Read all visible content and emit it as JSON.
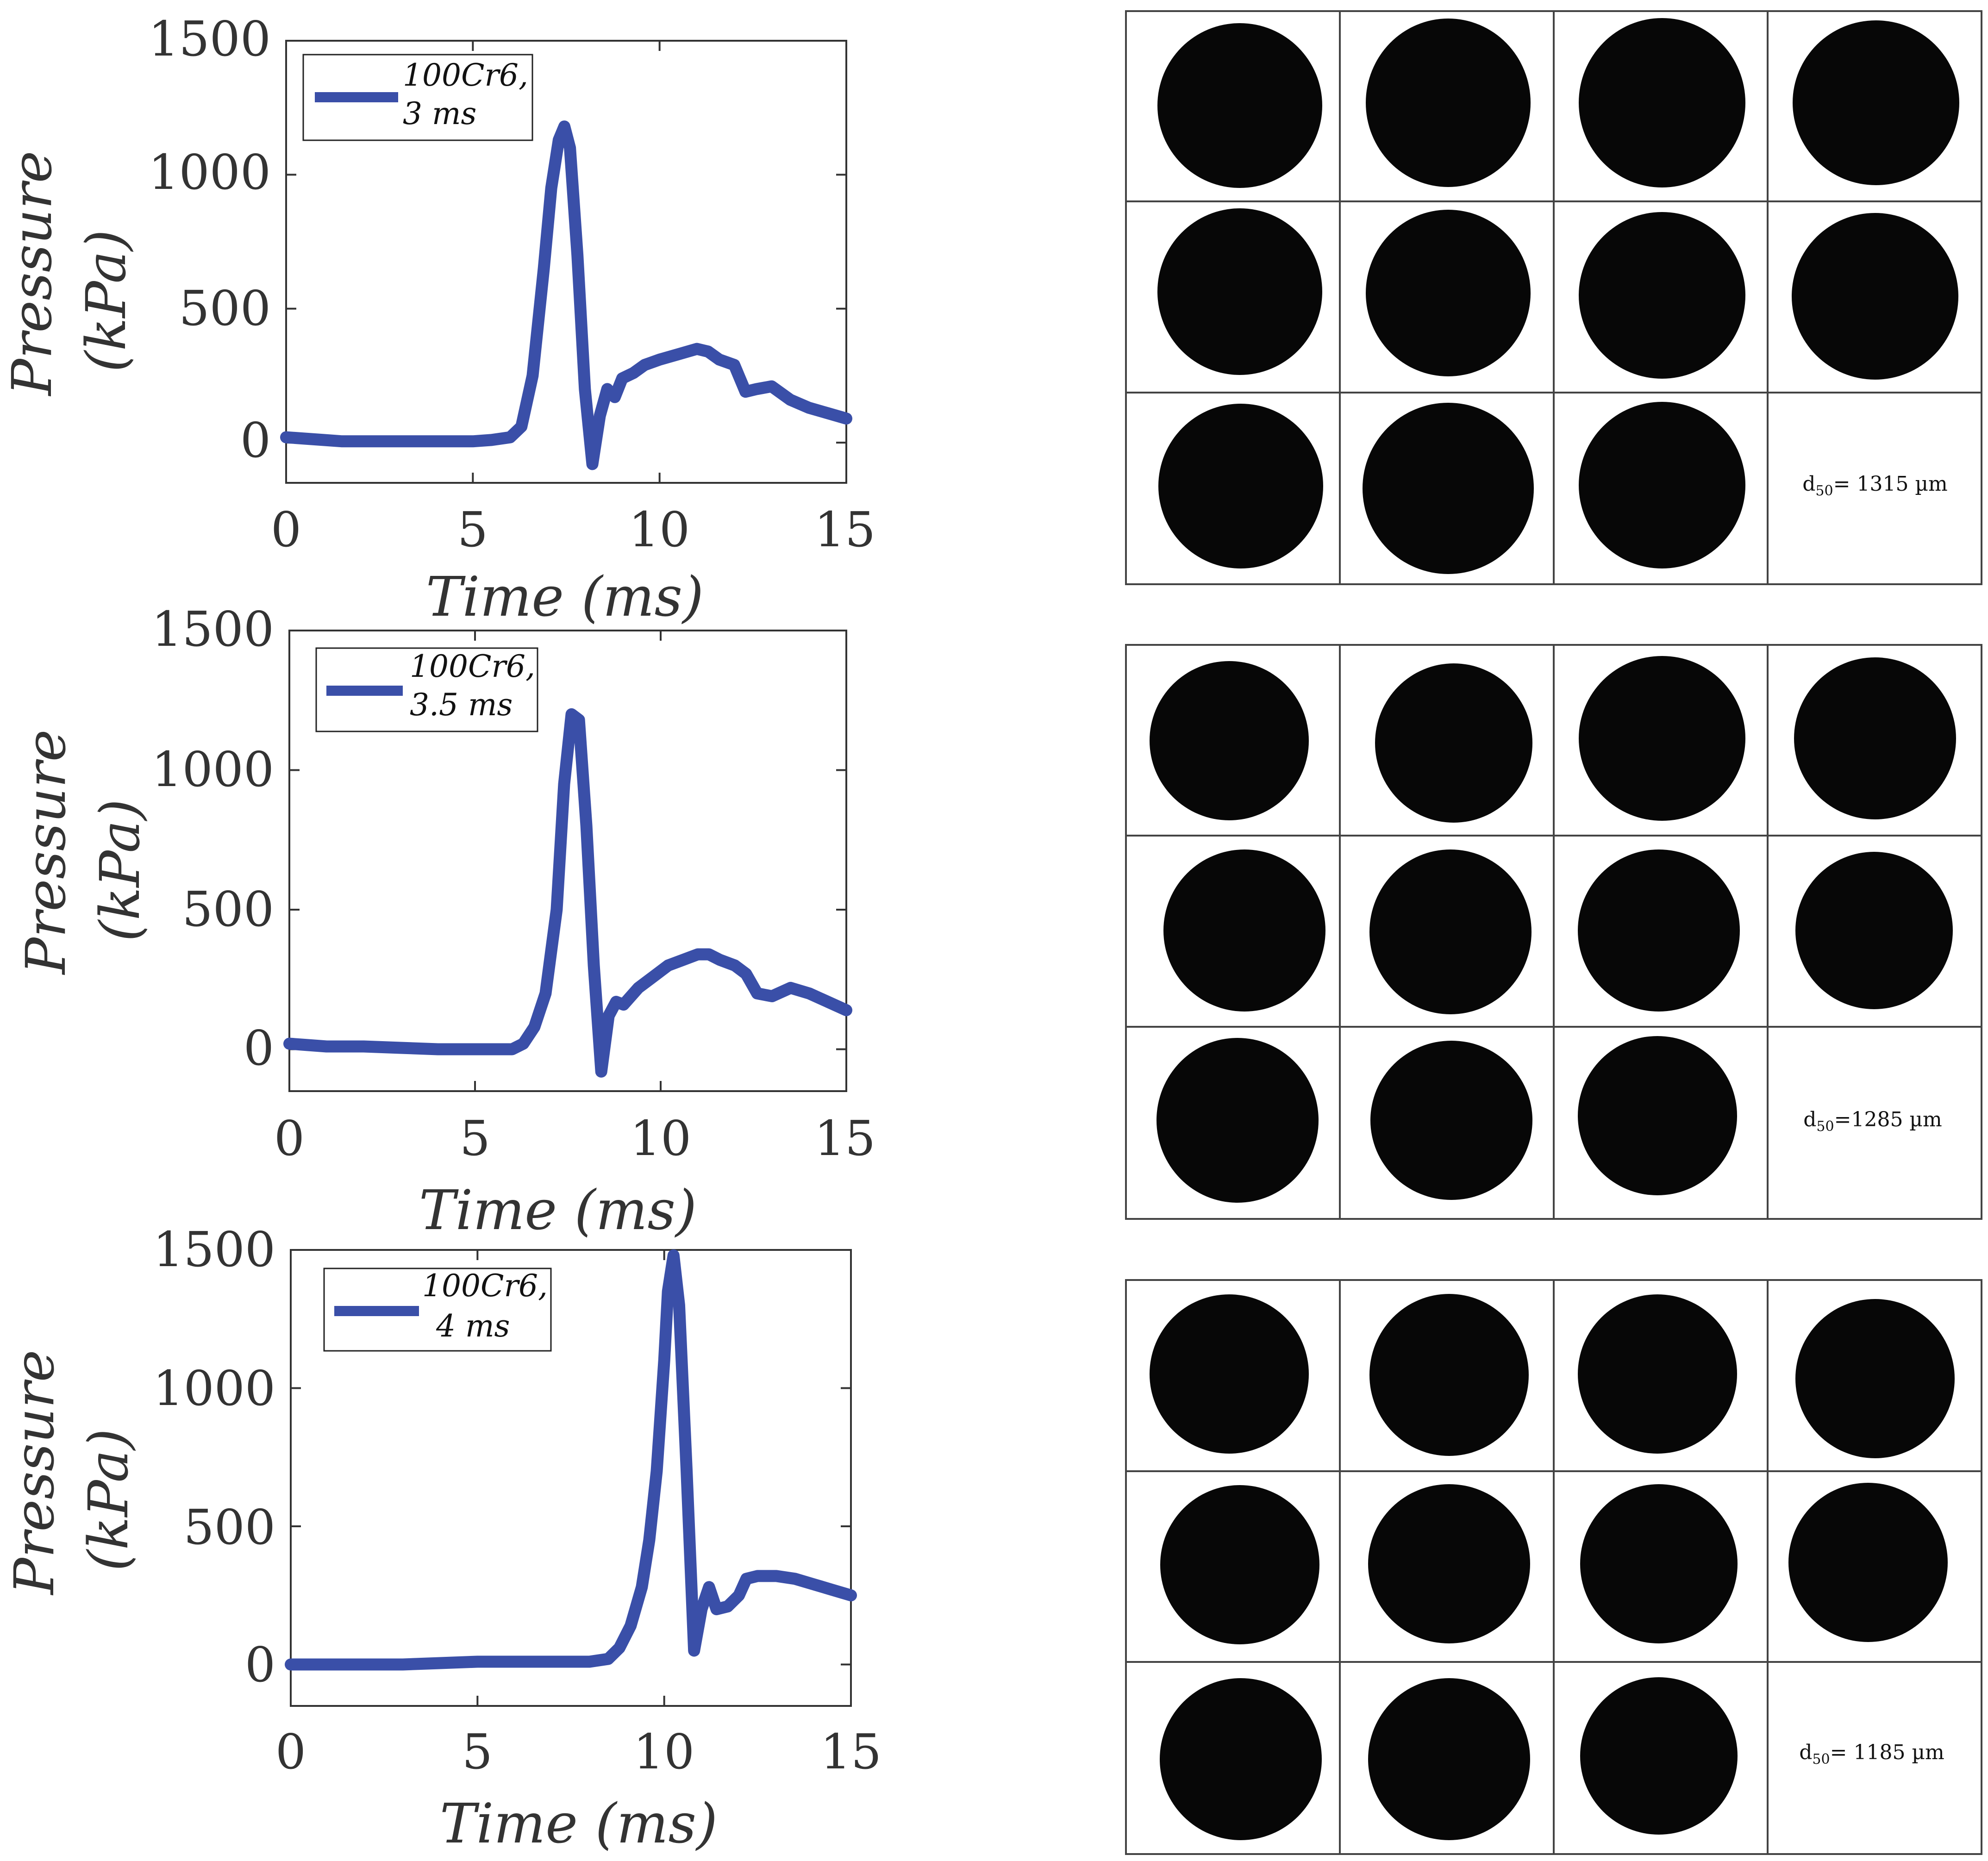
{
  "line_color": "#3a4fa8",
  "chart_data": [
    {
      "type": "line",
      "xlabel": "Time (ms)",
      "ylabel_line1": "Pressure",
      "ylabel_line2": "(kPa)",
      "xlim": [
        0,
        15
      ],
      "ylim": [
        -150,
        1500
      ],
      "xticks": [
        "0",
        "5",
        "10",
        "15"
      ],
      "yticks": [
        "0",
        "500",
        "1000",
        "1500"
      ],
      "legend_line1": "100Cr6,",
      "legend_line2": "3 ms",
      "legend_position": "top-left",
      "series": [
        {
          "x": [
            0,
            0.5,
            1,
            1.5,
            2,
            3,
            4,
            5,
            5.5,
            6,
            6.3,
            6.6,
            6.9,
            7.1,
            7.3,
            7.45,
            7.6,
            7.8,
            8.0,
            8.2,
            8.4,
            8.6,
            8.8,
            9.0,
            9.3,
            9.6,
            10.0,
            10.5,
            11.0,
            11.3,
            11.6,
            12.0,
            12.3,
            12.6,
            13.0,
            13.5,
            14.0,
            14.5,
            15.0
          ],
          "y": [
            20,
            15,
            10,
            5,
            5,
            5,
            5,
            5,
            10,
            20,
            60,
            250,
            650,
            950,
            1130,
            1180,
            1100,
            700,
            200,
            -80,
            100,
            200,
            170,
            240,
            260,
            290,
            310,
            330,
            350,
            340,
            310,
            290,
            190,
            200,
            210,
            160,
            130,
            110,
            90
          ]
        }
      ]
    },
    {
      "type": "line",
      "xlabel": "Time (ms)",
      "ylabel_line1": "Pressure",
      "ylabel_line2": "(kPa)",
      "xlim": [
        0,
        15
      ],
      "ylim": [
        -150,
        1500
      ],
      "xticks": [
        "0",
        "5",
        "10",
        "15"
      ],
      "yticks": [
        "0",
        "500",
        "1000",
        "1500"
      ],
      "legend_line1": "100Cr6,",
      "legend_line2": "3.5 ms",
      "legend_position": "top-left",
      "series": [
        {
          "x": [
            0,
            0.5,
            1,
            2,
            3,
            4,
            5,
            5.5,
            6,
            6.3,
            6.6,
            6.9,
            7.2,
            7.4,
            7.6,
            7.8,
            8.0,
            8.2,
            8.4,
            8.6,
            8.8,
            9.0,
            9.4,
            9.8,
            10.2,
            10.6,
            11.0,
            11.3,
            11.6,
            12.0,
            12.3,
            12.6,
            13.0,
            13.5,
            14.0,
            14.5,
            15.0
          ],
          "y": [
            20,
            15,
            10,
            10,
            5,
            0,
            0,
            0,
            0,
            20,
            80,
            200,
            500,
            950,
            1200,
            1180,
            800,
            300,
            -80,
            120,
            170,
            160,
            220,
            260,
            300,
            320,
            340,
            340,
            320,
            300,
            270,
            200,
            190,
            220,
            200,
            170,
            140
          ]
        }
      ]
    },
    {
      "type": "line",
      "xlabel": "Time (ms)",
      "ylabel_line1": "Pressure",
      "ylabel_line2": "(kPa)",
      "xlim": [
        0,
        15
      ],
      "ylim": [
        -150,
        1500
      ],
      "xticks": [
        "0",
        "5",
        "10",
        "15"
      ],
      "yticks": [
        "0",
        "500",
        "1000",
        "1500"
      ],
      "legend_line1": "100Cr6,",
      "legend_line2": "4 ms",
      "legend_position": "top-left",
      "series": [
        {
          "x": [
            0,
            1,
            2,
            3,
            4,
            5,
            6,
            7,
            8,
            8.5,
            8.8,
            9.1,
            9.4,
            9.6,
            9.8,
            10.0,
            10.1,
            10.25,
            10.4,
            10.6,
            10.8,
            11.0,
            11.2,
            11.4,
            11.7,
            12.0,
            12.2,
            12.5,
            13.0,
            13.5,
            14.0,
            14.5,
            15.0
          ],
          "y": [
            0,
            0,
            0,
            0,
            5,
            10,
            10,
            10,
            10,
            20,
            60,
            140,
            280,
            450,
            700,
            1100,
            1350,
            1480,
            1300,
            700,
            50,
            200,
            280,
            200,
            210,
            250,
            310,
            320,
            320,
            310,
            290,
            270,
            250
          ]
        }
      ]
    }
  ],
  "droplet_grids": [
    {
      "d50_prefix": "d",
      "d50_sub": "50",
      "d50_value": "= 1315 µm"
    },
    {
      "d50_prefix": "d",
      "d50_sub": "50",
      "d50_value": "=1285 µm"
    },
    {
      "d50_prefix": "d",
      "d50_sub": "50",
      "d50_value": "= 1185 µm"
    }
  ]
}
